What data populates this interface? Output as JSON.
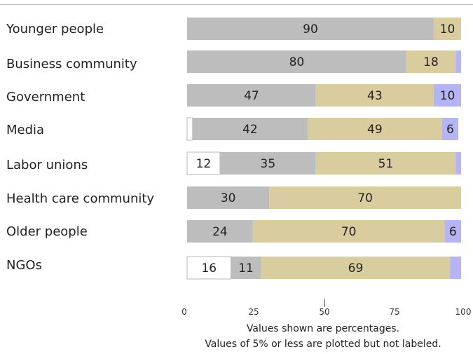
{
  "chart_data": {
    "type": "bar",
    "orientation": "horizontal",
    "stacked": true,
    "categories": [
      "Younger people",
      "Business community",
      "Government",
      "Media",
      "Labor unions",
      "Health care community",
      "Older people",
      "NGOs"
    ],
    "series": [
      {
        "color": "#ffffff",
        "values": [
          0,
          0,
          0,
          2,
          12,
          0,
          0,
          16
        ]
      },
      {
        "color": "#bdbdbd",
        "values": [
          90,
          80,
          47,
          42,
          35,
          30,
          24,
          11
        ]
      },
      {
        "color": "#d9cd9f",
        "values": [
          10,
          18,
          43,
          49,
          51,
          70,
          70,
          69
        ]
      },
      {
        "color": "#b5b5f5",
        "values": [
          0,
          2,
          10,
          6,
          2,
          0,
          6,
          4
        ]
      }
    ],
    "xlim": [
      0,
      100
    ],
    "xticks": [
      0,
      25,
      50,
      75,
      100
    ],
    "label_threshold": 5,
    "grid": false
  },
  "notes": {
    "line1": "Values shown are percentages.",
    "line2": "Values of 5% or less are plotted but not labeled."
  }
}
